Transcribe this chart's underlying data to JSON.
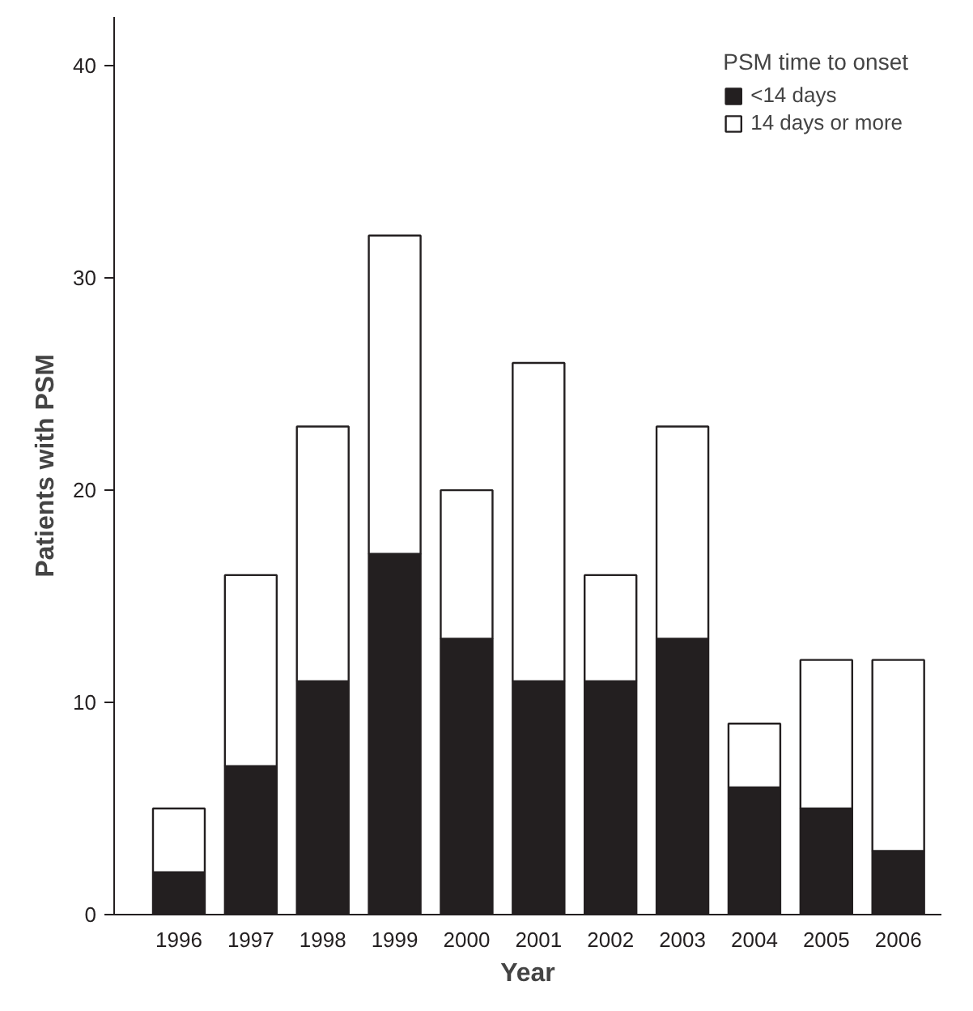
{
  "chart_data": {
    "type": "bar",
    "xlabel": "Year",
    "ylabel": "Patients with PSM",
    "legend_title": "PSM time to onset",
    "categories": [
      "1996",
      "1997",
      "1998",
      "1999",
      "2000",
      "2001",
      "2002",
      "2003",
      "2004",
      "2005",
      "2006"
    ],
    "stacked": true,
    "series": [
      {
        "name": "<14 days",
        "color": "#231f20",
        "values": [
          2,
          7,
          11,
          17,
          13,
          11,
          11,
          13,
          6,
          5,
          3
        ]
      },
      {
        "name": "14 days or more",
        "color": "#ffffff",
        "values": [
          3,
          9,
          12,
          15,
          7,
          15,
          5,
          10,
          3,
          7,
          9
        ]
      }
    ],
    "ylim": [
      0,
      42.3
    ],
    "yticks": [
      0,
      10,
      20,
      30,
      40
    ],
    "grid": false,
    "legend": "top right"
  }
}
